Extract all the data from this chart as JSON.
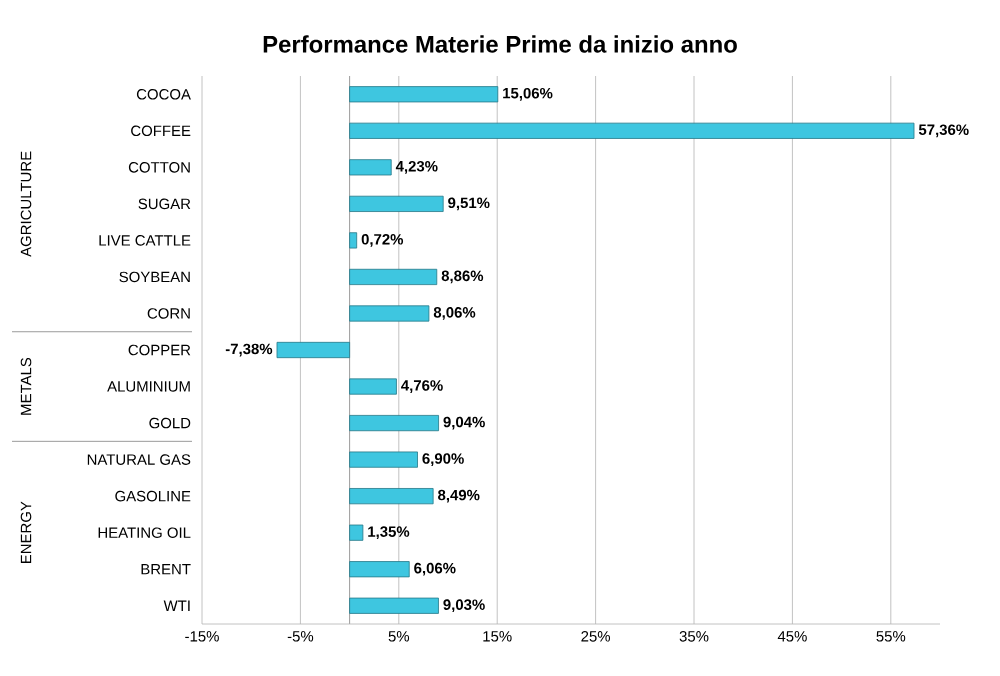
{
  "chart_data": {
    "type": "bar",
    "orientation": "horizontal",
    "title": "Performance Materie Prime da inizio anno",
    "categories": [
      "COCOA",
      "COFFEE",
      "COTTON",
      "SUGAR",
      "LIVE CATTLE",
      "SOYBEAN",
      "CORN",
      "COPPER",
      "ALUMINIUM",
      "GOLD",
      "NATURAL GAS",
      "GASOLINE",
      "HEATING OIL",
      "BRENT",
      "WTI"
    ],
    "values": [
      15.06,
      57.36,
      4.23,
      9.51,
      0.72,
      8.86,
      8.06,
      -7.38,
      4.76,
      9.04,
      6.9,
      8.49,
      1.35,
      6.06,
      9.03
    ],
    "value_labels": [
      "15,06%",
      "57,36%",
      "4,23%",
      "9,51%",
      "0,72%",
      "8,86%",
      "8,06%",
      "-7,38%",
      "4,76%",
      "9,04%",
      "6,90%",
      "8,49%",
      "1,35%",
      "6,06%",
      "9,03%"
    ],
    "color": "#3ec6e0",
    "xlim": [
      -15,
      60
    ],
    "xticks": [
      {
        "value": -15,
        "label": "-15%"
      },
      {
        "value": -5,
        "label": "-5%"
      },
      {
        "value": 5,
        "label": "5%"
      },
      {
        "value": 15,
        "label": "15%"
      },
      {
        "value": 25,
        "label": "25%"
      },
      {
        "value": 35,
        "label": "35%"
      },
      {
        "value": 45,
        "label": "45%"
      },
      {
        "value": 55,
        "label": "55%"
      }
    ],
    "grid": "x",
    "annotations": [
      "AGRICULTURE",
      "METALS",
      "ENERGY"
    ]
  }
}
